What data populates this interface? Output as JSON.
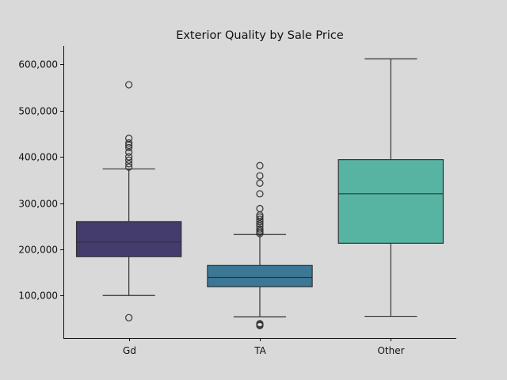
{
  "chart_data": {
    "type": "box",
    "title": "Exterior Quality by Sale Price",
    "xlabel": "",
    "ylabel": "",
    "ylim": [
      8000,
      640000
    ],
    "y_ticks": [
      100000,
      200000,
      300000,
      400000,
      500000,
      600000
    ],
    "y_tick_labels": [
      "100,000",
      "200,000",
      "300,000",
      "400,000",
      "500,000",
      "600,000"
    ],
    "categories": [
      "Gd",
      "TA",
      "Other"
    ],
    "boxes": [
      {
        "category": "Gd",
        "color": "#433c6c",
        "whisker_low": 100000,
        "q1": 184000,
        "median": 216000,
        "q3": 260000,
        "whisker_high": 374000,
        "outliers": [
          52000,
          378000,
          385000,
          393000,
          400000,
          410000,
          420000,
          425000,
          430000,
          440000,
          556000
        ]
      },
      {
        "category": "TA",
        "color": "#3c7796",
        "whisker_low": 54000,
        "q1": 119000,
        "median": 139000,
        "q3": 165000,
        "whisker_high": 232000,
        "outliers": [
          35000,
          37000,
          39000,
          234000,
          237000,
          240000,
          244000,
          250000,
          255000,
          260000,
          265000,
          270000,
          274000,
          288000,
          320000,
          343000,
          359000,
          381000
        ]
      },
      {
        "category": "Other",
        "color": "#57b4a3",
        "whisker_low": 55000,
        "q1": 213000,
        "median": 320000,
        "q3": 394000,
        "whisker_high": 612000,
        "outliers": []
      }
    ],
    "grid": false,
    "legend": "none"
  }
}
